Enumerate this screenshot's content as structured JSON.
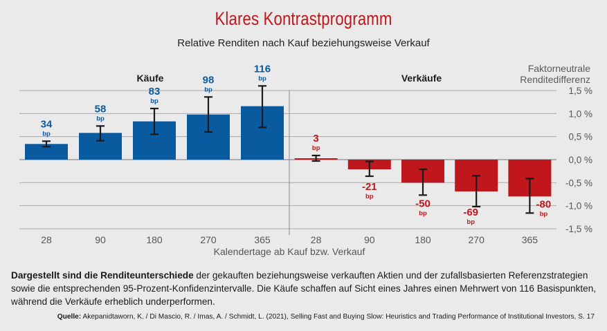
{
  "title": "Klares Kontrastprogramm",
  "subtitle": "Relative Renditen nach Kauf beziehungsweise Verkauf",
  "caption": {
    "bold": "Dargestellt sind die Renditeunterschiede",
    "text": " der gekauften beziehungsweise verkauften Aktien und der zufallsbasierten Referenzstrategien sowie die entsprechenden 95-Prozent-Konfidenzintervalle. Die Käufe schaffen auf Sicht eines Jahres einen Mehrwert von 116 Basispunkten, während die Verkäufe erheblich underperformen."
  },
  "source": {
    "label": "Quelle:",
    "text": " Akepanidtaworn, K. / Di Mascio, R. / Imas, A. / Schmidt, L. (2021), Selling Fast and Buying Slow: Heuristics and Trading Performance of Institutional Investors, S. 17"
  },
  "chart_data": {
    "type": "bar",
    "xlabel": "Kalendertage ab Kauf bzw. Verkauf",
    "ylabel": [
      "Faktorneutrale",
      "Renditedifferenz"
    ],
    "ylim": [
      -1.5,
      1.5
    ],
    "yticks": [
      1.5,
      1.0,
      0.5,
      0.0,
      -0.5,
      -1.0,
      -1.5
    ],
    "ytick_labels": [
      "1,5 %",
      "1,0 %",
      "0,5 %",
      "0,0 %",
      "-0,5 %",
      "-1,0 %",
      "-1,5 %"
    ],
    "grid": true,
    "unit_label": "bp",
    "series": [
      {
        "name": "Käufe",
        "color": "#0a5aa0",
        "categories": [
          "28",
          "90",
          "180",
          "270",
          "365"
        ],
        "values": [
          0.34,
          0.58,
          0.83,
          0.98,
          1.16
        ],
        "labels": [
          "34",
          "58",
          "83",
          "98",
          "116"
        ],
        "ci_low": [
          0.28,
          0.41,
          0.55,
          0.6,
          0.7
        ],
        "ci_high": [
          0.4,
          0.73,
          1.11,
          1.36,
          1.6
        ]
      },
      {
        "name": "Verkäufe",
        "color": "#c0171c",
        "categories": [
          "28",
          "90",
          "180",
          "270",
          "365"
        ],
        "values": [
          0.03,
          -0.21,
          -0.5,
          -0.69,
          -0.8
        ],
        "labels": [
          "3",
          "-21",
          "-50",
          "-69",
          "-80"
        ],
        "ci_low": [
          -0.03,
          -0.36,
          -0.77,
          -1.02,
          -1.16
        ],
        "ci_high": [
          0.09,
          -0.04,
          -0.21,
          -0.35,
          -0.41
        ]
      }
    ]
  }
}
